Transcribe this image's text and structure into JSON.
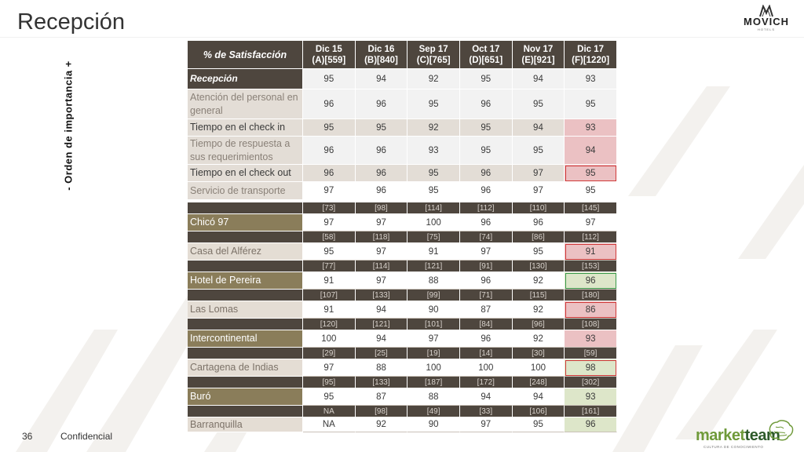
{
  "title": "Recepción",
  "brand": {
    "name": "MOVICH",
    "sub": "HOTELS"
  },
  "importance_label": "-   Orden de importancia   +",
  "table": {
    "header": {
      "label": "% de Satisfacción",
      "cols": [
        {
          "line1": "Dic 15",
          "line2": "(A)[559]"
        },
        {
          "line1": "Dic 16",
          "line2": "(B)[840]"
        },
        {
          "line1": "Sep 17",
          "line2": "(C)[765]"
        },
        {
          "line1": "Oct 17",
          "line2": "(D)[651]"
        },
        {
          "line1": "Nov 17",
          "line2": "(E)[921]"
        },
        {
          "line1": "Dic 17",
          "line2": "(F)[1220]"
        }
      ]
    },
    "attributes": [
      {
        "label": "Recepción",
        "values": [
          "95",
          "94",
          "92",
          "95",
          "94",
          "93"
        ]
      },
      {
        "label": "Atención del personal en general",
        "values": [
          "96",
          "96",
          "95",
          "96",
          "95",
          "95"
        ]
      },
      {
        "label": "Tiempo en el check in",
        "values": [
          "95",
          "95",
          "92",
          "95",
          "94",
          "93"
        ]
      },
      {
        "label": "Tiempo de respuesta a sus requerimientos",
        "values": [
          "96",
          "96",
          "93",
          "95",
          "95",
          "94"
        ]
      },
      {
        "label": "Tiempo en el check out",
        "values": [
          "96",
          "96",
          "95",
          "96",
          "97",
          "95"
        ]
      },
      {
        "label": "Servicio de transporte",
        "values": [
          "97",
          "96",
          "95",
          "96",
          "97",
          "95"
        ]
      }
    ],
    "hotels": [
      {
        "name": "Chicó 97",
        "bases": [
          "[73]",
          "[98]",
          "[114]",
          "[112]",
          "[110]",
          "[145]"
        ],
        "values": [
          "97",
          "97",
          "100",
          "96",
          "96",
          "97"
        ]
      },
      {
        "name": "Casa del Alférez",
        "bases": [
          "[58]",
          "[118]",
          "[75]",
          "[74]",
          "[86]",
          "[112]"
        ],
        "values": [
          "95",
          "97",
          "91",
          "97",
          "95",
          "91"
        ]
      },
      {
        "name": "Hotel de Pereira",
        "bases": [
          "[77]",
          "[114]",
          "[121]",
          "[91]",
          "[130]",
          "[153]"
        ],
        "values": [
          "91",
          "97",
          "88",
          "96",
          "92",
          "96"
        ]
      },
      {
        "name": "Las Lomas",
        "bases": [
          "[107]",
          "[133]",
          "[99]",
          "[71]",
          "[115]",
          "[180]"
        ],
        "values": [
          "91",
          "94",
          "90",
          "87",
          "92",
          "86"
        ]
      },
      {
        "name": "Intercontinental",
        "bases": [
          "[120]",
          "[121]",
          "[101]",
          "[84]",
          "[96]",
          "[108]"
        ],
        "values": [
          "100",
          "94",
          "97",
          "96",
          "92",
          "93"
        ]
      },
      {
        "name": "Cartagena de Indias",
        "bases": [
          "[29]",
          "[25]",
          "[19]",
          "[14]",
          "[30]",
          "[59]"
        ],
        "values": [
          "97",
          "88",
          "100",
          "100",
          "100",
          "98"
        ]
      },
      {
        "name": "Buró",
        "bases": [
          "[95]",
          "[133]",
          "[187]",
          "[172]",
          "[248]",
          "[302]"
        ],
        "values": [
          "95",
          "87",
          "88",
          "94",
          "94",
          "93"
        ]
      },
      {
        "name": "Barranquilla",
        "bases": [
          "NA",
          "[98]",
          "[49]",
          "[33]",
          "[106]",
          "[161]"
        ],
        "values": [
          "NA",
          "92",
          "90",
          "97",
          "95",
          "96"
        ]
      }
    ]
  },
  "footer": {
    "page": "36",
    "label": "Confidencial"
  },
  "partner": {
    "word_a": "market",
    "word_b": "team",
    "tagline": "CULTURA DE CONOCIMIENTO"
  },
  "colors": {
    "dark": "#4e463e",
    "gold": "#8a7d5a",
    "tan": "#e3ddd6",
    "highlight_red": "#ebc1c3",
    "highlight_green": "#dde6c9"
  }
}
